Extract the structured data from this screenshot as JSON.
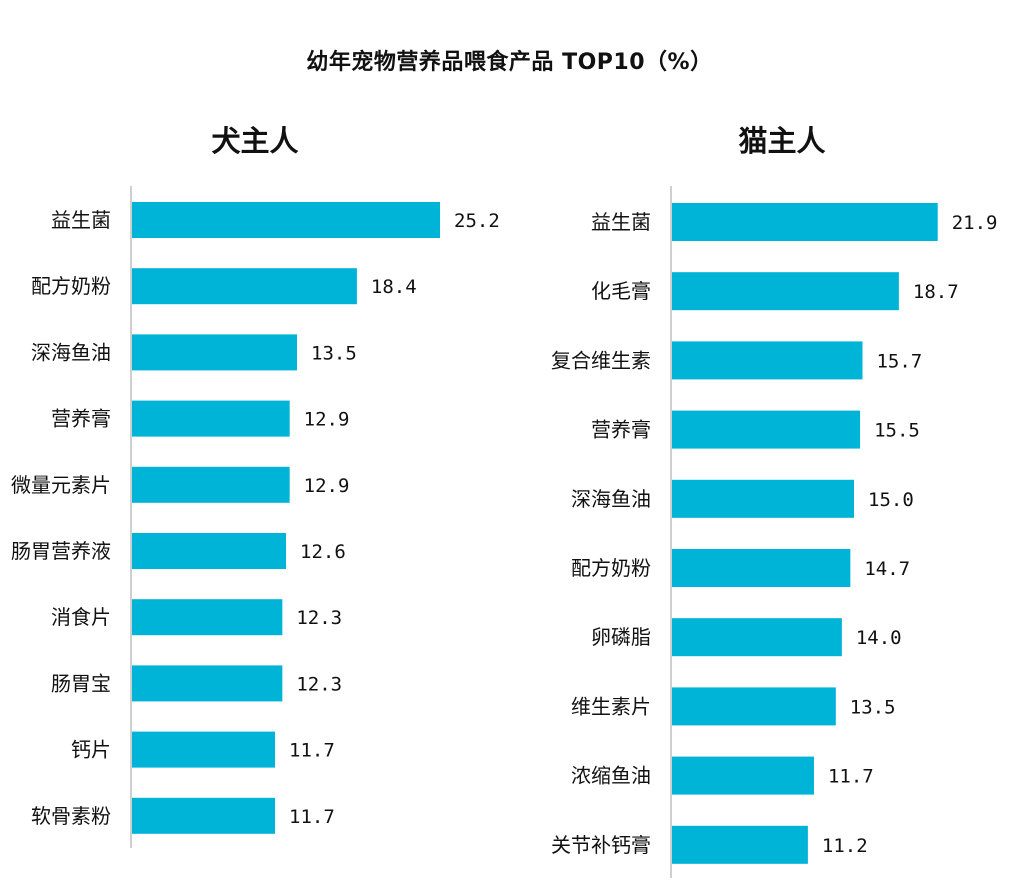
{
  "title": "幼年宠物营养品喂食产品 TOP10（%）",
  "colors": {
    "bar": "#00B4D8",
    "axis": "#bfbfbf"
  },
  "chart_data": [
    {
      "type": "bar",
      "orientation": "horizontal",
      "title": "犬主人",
      "categories": [
        "益生菌",
        "配方奶粉",
        "深海鱼油",
        "营养膏",
        "微量元素片",
        "肠胃营养液",
        "消食片",
        "肠胃宝",
        "钙片",
        "软骨素粉"
      ],
      "values": [
        25.2,
        18.4,
        13.5,
        12.9,
        12.9,
        12.6,
        12.3,
        12.3,
        11.7,
        11.7
      ],
      "value_labels": [
        "25.2",
        "18.4",
        "13.5",
        "12.9",
        "12.9",
        "12.6",
        "12.3",
        "12.3",
        "11.7",
        "11.7"
      ],
      "xlim": [
        0,
        30
      ],
      "grid": false,
      "legend": "none"
    },
    {
      "type": "bar",
      "orientation": "horizontal",
      "title": "猫主人",
      "categories": [
        "益生菌",
        "化毛膏",
        "复合维生素",
        "营养膏",
        "深海鱼油",
        "配方奶粉",
        "卵磷脂",
        "维生素片",
        "浓缩鱼油",
        "关节补钙膏"
      ],
      "values": [
        21.9,
        18.7,
        15.7,
        15.5,
        15.0,
        14.7,
        14.0,
        13.5,
        11.7,
        11.2
      ],
      "value_labels": [
        "21.9",
        "18.7",
        "15.7",
        "15.5",
        "15.0",
        "14.7",
        "14.0",
        "13.5",
        "11.7",
        "11.2"
      ],
      "xlim": [
        0,
        30
      ],
      "grid": false,
      "legend": "none"
    }
  ]
}
